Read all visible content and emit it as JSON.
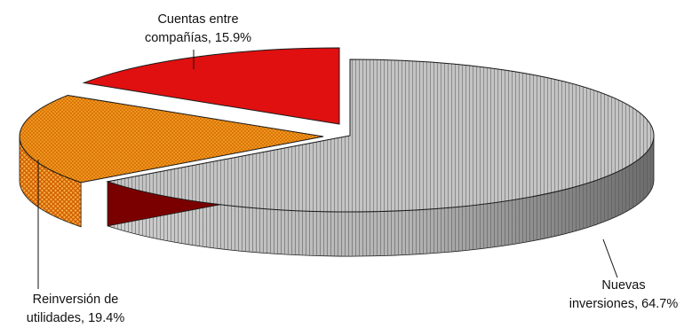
{
  "chart_data": {
    "type": "pie",
    "style": "3d-exploded",
    "title": "",
    "slices": [
      {
        "name": "Nuevas inversiones",
        "value": 64.7,
        "label_lines": [
          "Nuevas",
          "inversiones, 64.7%"
        ],
        "color": "#c9c9c9",
        "side_color": "#9a9a9a",
        "pattern": "vertical-lines"
      },
      {
        "name": "Reinversión de utilidades",
        "value": 19.4,
        "label_lines": [
          "Reinversión de",
          "utilidades, 19.4%"
        ],
        "color": "#f08c12",
        "side_color": "#e06a00",
        "pattern": "crosshatch"
      },
      {
        "name": "Cuentas entre compañías",
        "value": 15.9,
        "label_lines": [
          "Cuentas entre",
          "compañías, 15.9%"
        ],
        "color": "#e01010",
        "side_color": "#7a0000",
        "pattern": "solid"
      }
    ]
  }
}
